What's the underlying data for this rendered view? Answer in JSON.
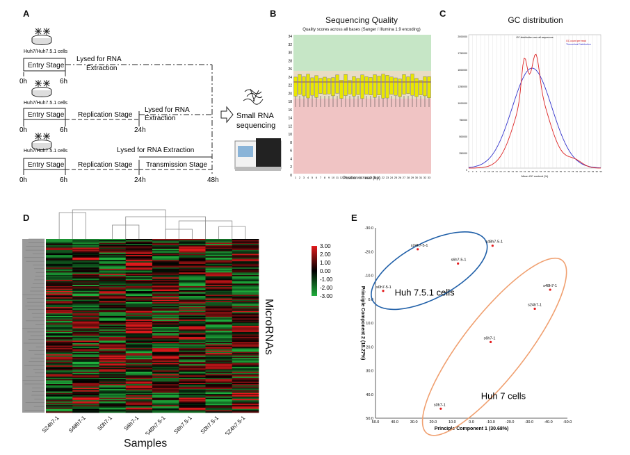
{
  "panels": {
    "a": {
      "label": "A",
      "cell_line": "Huh7/Huh7.5.1 cells",
      "entry_stage": "Entry Stage",
      "replication_stage": "Replication Stage",
      "transmission_stage": "Transmission Stage",
      "lysed_line1": "Lysed for RNA",
      "lysed_line2": "Extraction",
      "lysed_full": "Lysed for RNA Extraction",
      "t0": "0h",
      "t6": "6h",
      "t24": "24h",
      "t48": "48h",
      "small_rna_line1": "Small RNA",
      "small_rna_line2": "sequencing"
    },
    "b": {
      "label": "B",
      "title": "Sequencing Quality",
      "subtitle": "Quality scores across all bases (Sanger / Illumina 1.9 encoding)",
      "xlabel": "Position in read (bp)"
    },
    "c": {
      "label": "C",
      "title": "GC distribution",
      "legend_line1": "GC count per read",
      "legend_line2": "Theoretical Distribution",
      "inner_title": "GC distribution over all sequences",
      "xlabel": "Mean GC content (%)"
    },
    "d": {
      "label": "D",
      "ylabel": "MicroRNAs",
      "xlabel": "Samples"
    },
    "e": {
      "label": "E",
      "cluster1_label": "Huh 7.5.1 cells",
      "cluster2_label": "Huh 7 cells"
    }
  },
  "quality_ticks": [
    "34",
    "32",
    "30",
    "28",
    "26",
    "24",
    "22",
    "20",
    "18",
    "16",
    "14",
    "12",
    "10",
    "8",
    "6",
    "4",
    "2",
    "0"
  ],
  "quality_xticks": [
    "1",
    "2",
    "3",
    "4",
    "5",
    "6",
    "7",
    "8",
    "9",
    "10",
    "11",
    "12",
    "13",
    "14",
    "15",
    "16",
    "17",
    "18",
    "19",
    "20",
    "21",
    "22",
    "23",
    "24",
    "25",
    "26",
    "27",
    "28",
    "29",
    "30",
    "31",
    "32",
    "33"
  ],
  "gc_yticks": [
    "2000000",
    "1750000",
    "1500000",
    "1250000",
    "1000000",
    "750000",
    "500000",
    "250000",
    "0"
  ],
  "gc_xticks": [
    "0",
    "3",
    "6",
    "9",
    "12",
    "15",
    "18",
    "21",
    "24",
    "27",
    "30",
    "33",
    "36",
    "39",
    "42",
    "45",
    "48",
    "51",
    "54",
    "57",
    "60",
    "63",
    "66",
    "69",
    "72",
    "75",
    "78",
    "81",
    "84",
    "87",
    "90",
    "93",
    "96",
    "99"
  ],
  "heatmap": {
    "samples": [
      "S24h7-1",
      "S48h7-1",
      "S0h7-1",
      "S6h7-1",
      "S48h7.5-1",
      "S6h7.5-1",
      "S0h7.5-1",
      "S24h7.5-1"
    ],
    "scale": [
      "3.00",
      "2.00",
      "1.00",
      "0.00",
      "-1.00",
      "-2.00",
      "-3.00"
    ],
    "colors": {
      "high": "#e31a1c",
      "mid": "#000000",
      "low": "#1fae3c"
    }
  },
  "chart_data": {
    "type": "scatter",
    "title": "",
    "xlabel": "Principle Component 1 (30.68%)",
    "ylabel": "Principle Component 2 (18.27%)",
    "xlim": [
      50,
      -50
    ],
    "ylim": [
      -30,
      50
    ],
    "xticks": [
      "50.0",
      "40.0",
      "30.0",
      "20.0",
      "10.0",
      "0.0",
      "-10.0",
      "-20.0",
      "-30.0",
      "-40.0",
      "-50.0"
    ],
    "yticks": [
      "-30.0",
      "-20.0",
      "-10.0",
      "0.0",
      "10.0",
      "20.0",
      "30.0",
      "40.0",
      "50.0"
    ],
    "points": [
      {
        "label": "s24h7-5-1",
        "x": 28,
        "y": -21
      },
      {
        "label": "s6h7-5-1",
        "x": 7,
        "y": -15
      },
      {
        "label": "s48h7-5-1",
        "x": -11,
        "y": -22.5
      },
      {
        "label": "s0h7-5-1",
        "x": 46,
        "y": -3.5
      },
      {
        "label": "s48h7-1",
        "x": -41,
        "y": -4
      },
      {
        "label": "s24h7-1",
        "x": -33,
        "y": 4
      },
      {
        "label": "s6h7-1",
        "x": -10,
        "y": 18
      },
      {
        "label": "s0h7-1",
        "x": 16,
        "y": 46
      }
    ],
    "point_color": "#e31a1c"
  }
}
